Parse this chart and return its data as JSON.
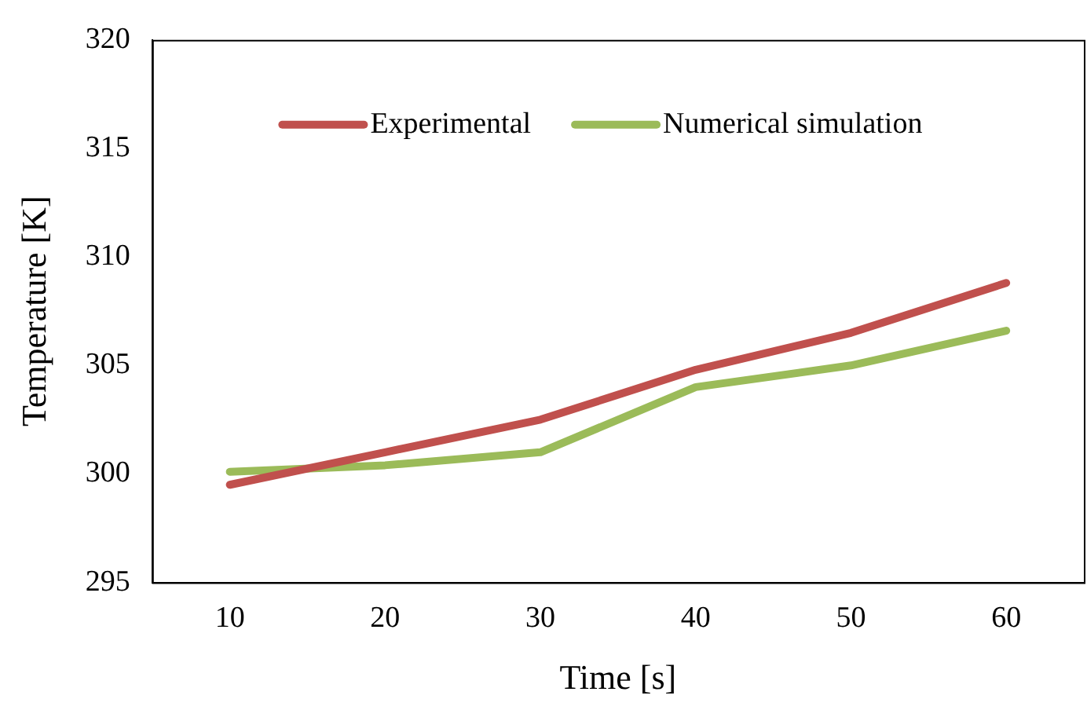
{
  "chart_data": {
    "type": "line",
    "xlabel": "Time [s]",
    "ylabel": "Temperature [K]",
    "categories": [
      "10",
      "20",
      "30",
      "40",
      "50",
      "60"
    ],
    "series": [
      {
        "name": "Experimental",
        "color": "#c0504d",
        "values": [
          299.5,
          301.0,
          302.5,
          304.8,
          306.5,
          308.8
        ]
      },
      {
        "name": "Numerical simulation",
        "color": "#9bbb59",
        "values": [
          300.1,
          300.4,
          301.0,
          304.0,
          305.0,
          306.6
        ]
      }
    ],
    "ylim": [
      295,
      320
    ],
    "yticks": [
      295,
      300,
      305,
      310,
      315,
      320
    ],
    "grid": false,
    "legend": "top",
    "marker": "none",
    "line_style": "solid"
  }
}
